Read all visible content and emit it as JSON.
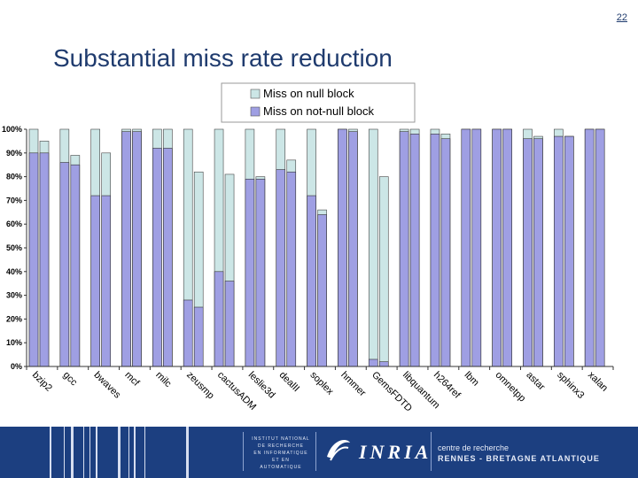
{
  "slide": {
    "number": "22",
    "title": "Substantial miss rate reduction"
  },
  "footer": {
    "institute": [
      "INSTITUT NATIONAL",
      "DE RECHERCHE",
      "EN INFORMATIQUE",
      "ET EN AUTOMATIQUE"
    ],
    "brand": "INRIA",
    "centre_line1": "centre de recherche",
    "centre_line2": "RENNES - BRETAGNE ATLANTIQUE"
  },
  "chart_data": {
    "type": "bar",
    "title": "",
    "xlabel": "",
    "ylabel": "",
    "ylim": [
      0,
      100
    ],
    "yticks": [
      "0%",
      "10%",
      "20%",
      "30%",
      "40%",
      "50%",
      "60%",
      "70%",
      "80%",
      "90%",
      "100%"
    ],
    "legend": "top-center",
    "categories": [
      "bzip2",
      "gcc",
      "bwaves",
      "mcf",
      "milc",
      "zeusmp",
      "cactusADM",
      "leslie3d",
      "dealII",
      "soplex",
      "hmmer",
      "GemsFDTD",
      "libquantum",
      "h264ref",
      "lbm",
      "omnetpp",
      "astar",
      "sphinx3",
      "xalan"
    ],
    "series": [
      {
        "name": "Miss on null block",
        "color": "#cce6e6",
        "values": [
          [
            100,
            95
          ],
          [
            100,
            89
          ],
          [
            100,
            90
          ],
          [
            100,
            100
          ],
          [
            100,
            100
          ],
          [
            100,
            82
          ],
          [
            100,
            81
          ],
          [
            100,
            80
          ],
          [
            100,
            87
          ],
          [
            100,
            66
          ],
          [
            100,
            100
          ],
          [
            100,
            80
          ],
          [
            100,
            100
          ],
          [
            100,
            98
          ],
          [
            100,
            100
          ],
          [
            100,
            100
          ],
          [
            100,
            97
          ],
          [
            100,
            97
          ],
          [
            100,
            100
          ]
        ]
      },
      {
        "name": "Miss on not-null block",
        "color": "#9f9fe3",
        "values": [
          [
            90,
            90
          ],
          [
            86,
            85
          ],
          [
            72,
            72
          ],
          [
            99,
            99
          ],
          [
            92,
            92
          ],
          [
            28,
            25
          ],
          [
            40,
            36
          ],
          [
            79,
            79
          ],
          [
            83,
            82
          ],
          [
            72,
            64
          ],
          [
            100,
            99
          ],
          [
            3,
            2
          ],
          [
            99,
            98
          ],
          [
            98,
            96
          ],
          [
            100,
            100
          ],
          [
            100,
            100
          ],
          [
            96,
            96
          ],
          [
            97,
            97
          ],
          [
            100,
            100
          ]
        ]
      }
    ]
  }
}
